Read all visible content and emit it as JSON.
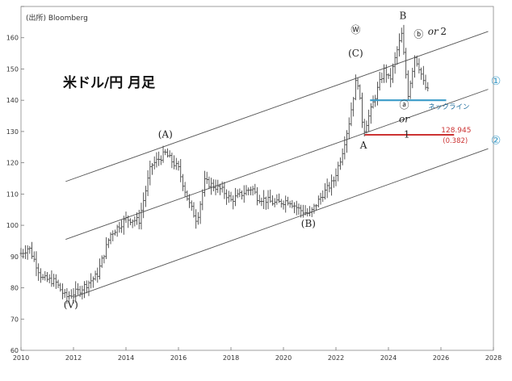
{
  "chart_data": {
    "type": "ohlc",
    "title": "米ドル/円 月足",
    "source": "(出所) Bloomberg",
    "xlim": [
      2010,
      2028
    ],
    "ylim": [
      60,
      170
    ],
    "x_ticks": [
      2010,
      2012,
      2014,
      2016,
      2018,
      2020,
      2022,
      2024,
      2026,
      2028
    ],
    "x_tick_labels": [
      "2010",
      "2012",
      "2014",
      "2016",
      "2018",
      "2020",
      "2022",
      "2024",
      "2026",
      "2028"
    ],
    "y_ticks": [
      60,
      70,
      80,
      90,
      100,
      110,
      120,
      130,
      140,
      150,
      160,
      170
    ],
    "y_tick_labels": [
      "60",
      "70",
      "80",
      "90",
      "100",
      "110",
      "120",
      "130",
      "140",
      "150",
      "160",
      ""
    ],
    "grid": false,
    "series_anchor_points": [
      [
        2010.0,
        91
      ],
      [
        2010.3,
        93
      ],
      [
        2010.8,
        83
      ],
      [
        2011.3,
        82
      ],
      [
        2011.7,
        77
      ],
      [
        2012.2,
        79
      ],
      [
        2012.9,
        84
      ],
      [
        2013.4,
        97
      ],
      [
        2014.0,
        102
      ],
      [
        2014.5,
        101.5
      ],
      [
        2014.95,
        119
      ],
      [
        2015.5,
        123
      ],
      [
        2016.0,
        118
      ],
      [
        2016.4,
        107
      ],
      [
        2016.7,
        101.5
      ],
      [
        2017.0,
        114
      ],
      [
        2017.7,
        111
      ],
      [
        2018.0,
        108
      ],
      [
        2018.8,
        112
      ],
      [
        2019.0,
        109
      ],
      [
        2019.7,
        107
      ],
      [
        2020.2,
        108
      ],
      [
        2020.6,
        105
      ],
      [
        2021.0,
        103.5
      ],
      [
        2021.5,
        110
      ],
      [
        2021.9,
        114
      ],
      [
        2022.2,
        122
      ],
      [
        2022.5,
        133
      ],
      [
        2022.8,
        148
      ],
      [
        2023.05,
        130
      ],
      [
        2023.3,
        136
      ],
      [
        2023.6,
        144
      ],
      [
        2023.85,
        150
      ],
      [
        2024.05,
        146
      ],
      [
        2024.3,
        155
      ],
      [
        2024.5,
        161
      ],
      [
        2024.75,
        142
      ],
      [
        2025.0,
        154
      ],
      [
        2025.2,
        150
      ],
      [
        2025.35,
        145
      ],
      [
        2025.5,
        143
      ]
    ],
    "channel_lines": [
      {
        "from": [
          2011.7,
          114
        ],
        "to": [
          2027.8,
          162
        ]
      },
      {
        "from": [
          2011.7,
          95.5
        ],
        "to": [
          2027.8,
          143.5
        ]
      },
      {
        "from": [
          2012.0,
          77
        ],
        "to": [
          2027.8,
          124.5
        ]
      }
    ],
    "channel_labels": [
      {
        "text": "①",
        "x": 2027.9,
        "y": 145
      },
      {
        "text": "②",
        "x": 2027.9,
        "y": 126
      }
    ],
    "neckline": {
      "y": 140,
      "x_from": 2023.3,
      "x_to": 2026.2,
      "label": "ネックライン",
      "color": "#3a9bc8"
    },
    "target_line": {
      "y": 128.945,
      "x_from": 2023.1,
      "x_to": 2026.5,
      "label": "128.945",
      "sublabel": "(0.382)",
      "color": "#cc3333"
    },
    "wave_labels": [
      {
        "text": "(V)",
        "x": 2011.9,
        "y": 73.5
      },
      {
        "text": "(A)",
        "x": 2015.5,
        "y": 128
      },
      {
        "text": "(B)",
        "x": 2020.95,
        "y": 99.5
      },
      {
        "text": "(C)",
        "x": 2022.75,
        "y": 154
      },
      {
        "text": "Ⓦ",
        "x": 2022.75,
        "y": 161.5
      },
      {
        "text": "A",
        "x": 2023.05,
        "y": 124.5
      },
      {
        "text": "B",
        "x": 2024.55,
        "y": 166
      },
      {
        "text": "ⓐ",
        "x": 2024.6,
        "y": 137.5
      },
      {
        "text": "ⓑ",
        "x": 2025.15,
        "y": 160
      },
      {
        "text": "1",
        "x": 2024.7,
        "y": 128
      },
      {
        "text": "or",
        "x": 2024.6,
        "y": 133,
        "color": "#cc3333",
        "italic": true
      },
      {
        "text": "or",
        "x": 2025.7,
        "y": 161,
        "color": "#cc3333",
        "italic": true
      },
      {
        "text": "2",
        "x": 2026.1,
        "y": 161,
        "color": "#2a3a6a"
      }
    ],
    "colors": {
      "bars": "#444444",
      "axis": "#777777",
      "neckline": "#3a9bc8",
      "target": "#cc3333",
      "circle_label": "#3a9bc8"
    }
  }
}
